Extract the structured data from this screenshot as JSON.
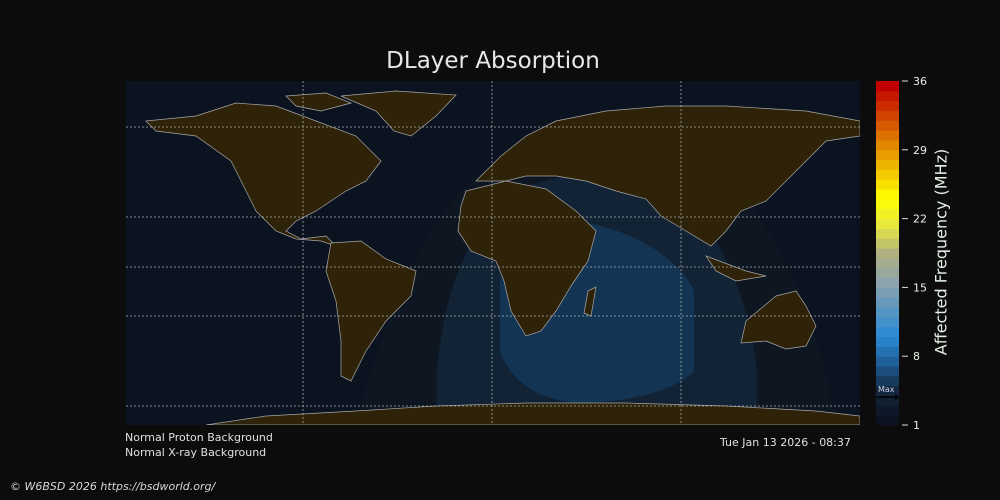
{
  "title": "DLayer Absorption",
  "colorbar": {
    "label": "Affected Frequency (MHz)",
    "min": 1,
    "max": 36,
    "ticks": [
      "36",
      "29",
      "22",
      "15",
      "8",
      "1"
    ],
    "max_marker": "Max",
    "max_marker_value": 4,
    "color_stops": [
      "#0d1220",
      "#13243a",
      "#1f5a90",
      "#2a8ad8",
      "#5a96c0",
      "#90a4ac",
      "#b0b080",
      "#e8e840",
      "#ffff00",
      "#f0c000",
      "#e08000",
      "#d04000",
      "#c00000"
    ]
  },
  "status": {
    "proton": "Normal Proton Background",
    "xray": "Normal X-ray Background",
    "timestamp": "Tue Jan 13 2026 - 08:37"
  },
  "copyright": "© W6BSD 2026 https://bsdworld.org/",
  "colors": {
    "ocean": "#0c1320",
    "land": "#2e2208",
    "coast": "#a8a8a8",
    "zone_outer": "#0e1622",
    "zone_mid": "#112335",
    "zone_inner": "#143453"
  }
}
